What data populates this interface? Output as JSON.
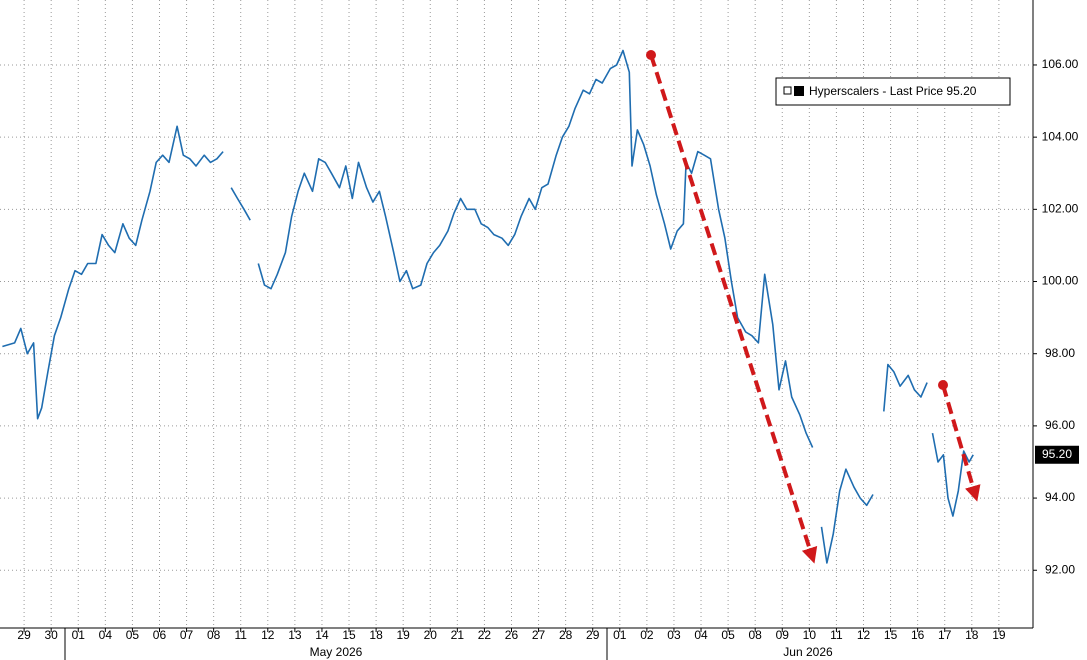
{
  "chart_data": {
    "type": "line",
    "series": [
      {
        "name": "Hyperscalers",
        "color": "#1f6db0",
        "x": [
          -0.8,
          -0.35,
          -0.12,
          0.12,
          0.35,
          0.5,
          0.65,
          0.88,
          1.12,
          1.35,
          1.65,
          1.88,
          2.12,
          2.35,
          2.65,
          2.88,
          3.12,
          3.35,
          3.65,
          3.88,
          4.12,
          4.35,
          4.65,
          4.88,
          5.12,
          5.35,
          5.65,
          5.88,
          6.12,
          6.35,
          6.65,
          6.88,
          7.12,
          7.35,
          7.5,
          7.65,
          7.88,
          8.12,
          8.35,
          8.5,
          8.65,
          8.88,
          9.12,
          9.35,
          9.65,
          9.88,
          10.12,
          10.35,
          10.65,
          10.88,
          11.12,
          11.35,
          11.65,
          11.88,
          12.12,
          12.35,
          12.65,
          12.88,
          13.12,
          13.35,
          13.65,
          13.88,
          14.12,
          14.35,
          14.65,
          14.88,
          15.12,
          15.35,
          15.65,
          15.88,
          16.12,
          16.35,
          16.65,
          16.88,
          17.12,
          17.35,
          17.65,
          17.88,
          18.12,
          18.35,
          18.65,
          18.88,
          19.12,
          19.35,
          19.65,
          19.88,
          20.12,
          20.35,
          20.65,
          20.88,
          21.12,
          21.35,
          21.65,
          21.88,
          22.12,
          22.35,
          22.45,
          22.65,
          22.88,
          23.12,
          23.35,
          23.65,
          23.88,
          24.12,
          24.35,
          24.45,
          24.65,
          24.88,
          25.12,
          25.35,
          25.65,
          25.88,
          26.12,
          26.35,
          26.65,
          26.88,
          27.12,
          27.35,
          27.65,
          27.88,
          28.12,
          28.35,
          28.65,
          28.88,
          29.12,
          29.3,
          29.45,
          29.65,
          29.88,
          30.12,
          30.35,
          30.65,
          30.88,
          31.12,
          31.35,
          31.6,
          31.75,
          31.9,
          32.12,
          32.35,
          32.65,
          32.88,
          33.12,
          33.35,
          33.5,
          33.55,
          33.75,
          33.95,
          34.12,
          34.3,
          34.5,
          34.7,
          34.9,
          35.05
        ],
        "values": [
          98.2,
          98.3,
          98.7,
          98.0,
          98.3,
          96.2,
          96.5,
          97.5,
          98.5,
          99.0,
          99.8,
          100.3,
          100.2,
          100.5,
          100.5,
          101.3,
          101.0,
          100.8,
          101.6,
          101.2,
          101.0,
          101.7,
          102.5,
          103.3,
          103.5,
          103.3,
          104.3,
          103.5,
          103.4,
          103.2,
          103.5,
          103.3,
          103.4,
          103.6,
          null,
          102.6,
          102.3,
          102.0,
          101.7,
          null,
          100.5,
          99.9,
          99.8,
          100.2,
          100.8,
          101.8,
          102.5,
          103.0,
          102.5,
          103.4,
          103.3,
          103.0,
          102.6,
          103.2,
          102.3,
          103.3,
          102.6,
          102.2,
          102.5,
          101.8,
          100.8,
          100.0,
          100.3,
          99.8,
          99.9,
          100.5,
          100.8,
          101.0,
          101.4,
          101.9,
          102.3,
          102.0,
          102.0,
          101.6,
          101.5,
          101.3,
          101.2,
          101.0,
          101.3,
          101.8,
          102.3,
          102.0,
          102.6,
          102.7,
          103.5,
          104.0,
          104.3,
          104.8,
          105.3,
          105.2,
          105.6,
          105.5,
          105.9,
          106.0,
          106.4,
          105.8,
          103.2,
          104.2,
          103.8,
          103.2,
          102.4,
          101.6,
          100.9,
          101.4,
          101.6,
          103.3,
          103.0,
          103.6,
          103.5,
          103.4,
          102.0,
          101.2,
          100.0,
          99.0,
          98.6,
          98.5,
          98.3,
          100.2,
          98.8,
          97.0,
          97.8,
          96.8,
          96.3,
          95.8,
          95.4,
          null,
          93.2,
          92.2,
          93.0,
          94.2,
          94.8,
          94.3,
          94.0,
          93.8,
          94.1,
          null,
          96.4,
          97.7,
          97.5,
          97.1,
          97.4,
          97.0,
          96.8,
          97.2,
          null,
          95.8,
          95.0,
          95.2,
          94.0,
          93.5,
          94.2,
          95.3,
          95.0,
          95.2
        ]
      }
    ],
    "xlim": [
      -0.89,
      37.26
    ],
    "xticks": [
      {
        "value": 0,
        "label": "29"
      },
      {
        "value": 1,
        "label": "30"
      },
      {
        "value": 2,
        "label": "01"
      },
      {
        "value": 3,
        "label": "04"
      },
      {
        "value": 4,
        "label": "05"
      },
      {
        "value": 5,
        "label": "06"
      },
      {
        "value": 6,
        "label": "07"
      },
      {
        "value": 7,
        "label": "08"
      },
      {
        "value": 8,
        "label": "11"
      },
      {
        "value": 9,
        "label": "12"
      },
      {
        "value": 10,
        "label": "13"
      },
      {
        "value": 11,
        "label": "14"
      },
      {
        "value": 12,
        "label": "15"
      },
      {
        "value": 13,
        "label": "18"
      },
      {
        "value": 14,
        "label": "19"
      },
      {
        "value": 15,
        "label": "20"
      },
      {
        "value": 16,
        "label": "21"
      },
      {
        "value": 17,
        "label": "22"
      },
      {
        "value": 18,
        "label": "26"
      },
      {
        "value": 19,
        "label": "27"
      },
      {
        "value": 20,
        "label": "28"
      },
      {
        "value": 21,
        "label": "29"
      },
      {
        "value": 22,
        "label": "01"
      },
      {
        "value": 23,
        "label": "02"
      },
      {
        "value": 24,
        "label": "03"
      },
      {
        "value": 25,
        "label": "04"
      },
      {
        "value": 26,
        "label": "05"
      },
      {
        "value": 27,
        "label": "08"
      },
      {
        "value": 28,
        "label": "09"
      },
      {
        "value": 29,
        "label": "10"
      },
      {
        "value": 30,
        "label": "11"
      },
      {
        "value": 31,
        "label": "12"
      },
      {
        "value": 32,
        "label": "15"
      },
      {
        "value": 33,
        "label": "16"
      },
      {
        "value": 34,
        "label": "17"
      },
      {
        "value": 35,
        "label": "18"
      },
      {
        "value": 36,
        "label": "19"
      }
    ],
    "x_groups": [
      "May 2026",
      "Jun 2026"
    ],
    "ylim": [
      90.4,
      107.8
    ],
    "yticks": [
      {
        "value": 92,
        "label": "92.00"
      },
      {
        "value": 94,
        "label": "94.00"
      },
      {
        "value": 96,
        "label": "96.00"
      },
      {
        "value": 98,
        "label": "98.00"
      },
      {
        "value": 100,
        "label": "100.00"
      },
      {
        "value": 102,
        "label": "102.00"
      },
      {
        "value": 104,
        "label": "104.00"
      },
      {
        "value": 106,
        "label": "106.00"
      }
    ],
    "grid": true,
    "legend_text": "- Last Price",
    "last_price": {
      "value": 95.2,
      "label": "95.20"
    }
  }
}
